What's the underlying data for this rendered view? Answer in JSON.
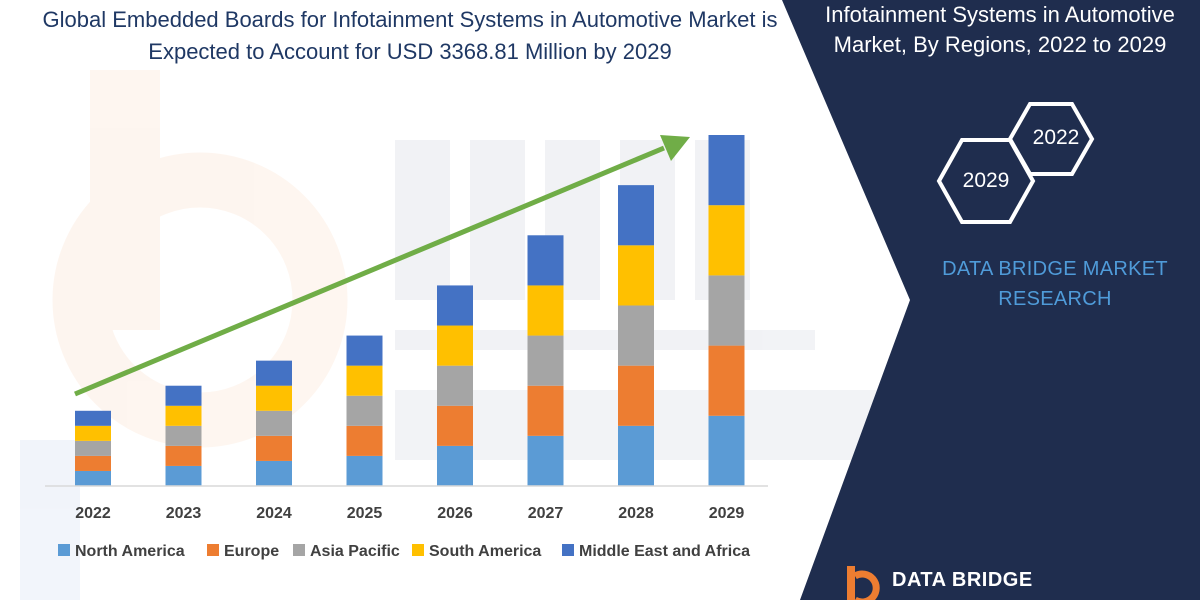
{
  "left_title": "Global Embedded Boards for Infotainment Systems in Automotive Market is Expected to Account for USD 3368.81 Million by 2029",
  "right_title": "Infotainment Systems in Automotive Market, By Regions, 2022 to 2029",
  "hex_labels": {
    "start": "2022",
    "end": "2029"
  },
  "brand_text": "DATA BRIDGE MARKET RESEARCH",
  "logo_text": "DATA BRIDGE",
  "colors": {
    "panel": "#1f2d4e",
    "accent_arrow": "#70ad47",
    "brand_blue": "#4f9bd9"
  },
  "chart_data": {
    "type": "bar",
    "stacked": true,
    "categories": [
      "2022",
      "2023",
      "2024",
      "2025",
      "2026",
      "2027",
      "2028",
      "2029"
    ],
    "series": [
      {
        "name": "North America",
        "color": "#5b9bd5",
        "values": [
          15,
          20,
          25,
          30,
          40,
          50,
          60,
          70
        ]
      },
      {
        "name": "Europe",
        "color": "#ed7d31",
        "values": [
          15,
          20,
          25,
          30,
          40,
          50,
          60,
          70
        ]
      },
      {
        "name": "Asia Pacific",
        "color": "#a5a5a5",
        "values": [
          15,
          20,
          25,
          30,
          40,
          50,
          60,
          70
        ]
      },
      {
        "name": "South America",
        "color": "#ffc000",
        "values": [
          15,
          20,
          25,
          30,
          40,
          50,
          60,
          70
        ]
      },
      {
        "name": "Middle East and Africa",
        "color": "#4472c4",
        "values": [
          15,
          20,
          25,
          30,
          40,
          50,
          60,
          70
        ]
      }
    ],
    "ylim": [
      0,
      350
    ],
    "legend": "bottom",
    "annotation": "upward trend arrow"
  }
}
